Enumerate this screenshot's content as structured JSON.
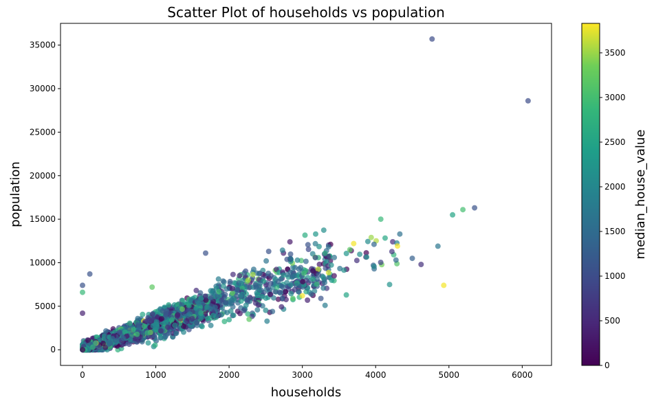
{
  "chart_data": {
    "type": "scatter",
    "title": "Scatter Plot of households vs population",
    "xlabel": "households",
    "ylabel": "population",
    "colorbar_label": "median_house_value",
    "xlim": [
      -300,
      6400
    ],
    "ylim": [
      -1800,
      37500
    ],
    "xticks": [
      0,
      1000,
      2000,
      3000,
      4000,
      5000,
      6000
    ],
    "yticks": [
      0,
      5000,
      10000,
      15000,
      20000,
      25000,
      30000,
      35000
    ],
    "colorbar_range": [
      0,
      3830
    ],
    "colorbar_ticks": [
      0,
      500,
      1000,
      1500,
      2000,
      2500,
      3000,
      3500
    ],
    "colormap": "viridis",
    "alpha": 0.7,
    "grid": false,
    "notable_points": [
      {
        "x": 4770,
        "y": 35700,
        "c": 1000
      },
      {
        "x": 6080,
        "y": 28600,
        "c": 1000
      },
      {
        "x": 5350,
        "y": 16300,
        "c": 1100
      },
      {
        "x": 5190,
        "y": 16100,
        "c": 3000
      },
      {
        "x": 5050,
        "y": 15500,
        "c": 2500
      },
      {
        "x": 4070,
        "y": 15000,
        "c": 2900
      },
      {
        "x": 4330,
        "y": 13300,
        "c": 1600
      },
      {
        "x": 2830,
        "y": 12400,
        "c": 300
      },
      {
        "x": 3700,
        "y": 12200,
        "c": 3800
      },
      {
        "x": 3940,
        "y": 12900,
        "c": 3500
      },
      {
        "x": 4850,
        "y": 11900,
        "c": 1700
      },
      {
        "x": 1680,
        "y": 11100,
        "c": 1100
      },
      {
        "x": 2540,
        "y": 11300,
        "c": 1100
      },
      {
        "x": 4930,
        "y": 7400,
        "c": 3800
      },
      {
        "x": 100,
        "y": 8700,
        "c": 1100
      },
      {
        "x": 0,
        "y": 7400,
        "c": 1100
      },
      {
        "x": 0,
        "y": 6600,
        "c": 2900
      },
      {
        "x": 3000,
        "y": 6200,
        "c": 3800
      },
      {
        "x": 3600,
        "y": 6300,
        "c": 2500
      },
      {
        "x": 4620,
        "y": 9800,
        "c": 600
      },
      {
        "x": 4500,
        "y": 10500,
        "c": 1300
      },
      {
        "x": 4190,
        "y": 7500,
        "c": 2200
      },
      {
        "x": 3310,
        "y": 5100,
        "c": 1800
      },
      {
        "x": 3070,
        "y": 5700,
        "c": 400
      },
      {
        "x": 950,
        "y": 7200,
        "c": 3200
      },
      {
        "x": 0,
        "y": 4200,
        "c": 400
      }
    ]
  }
}
